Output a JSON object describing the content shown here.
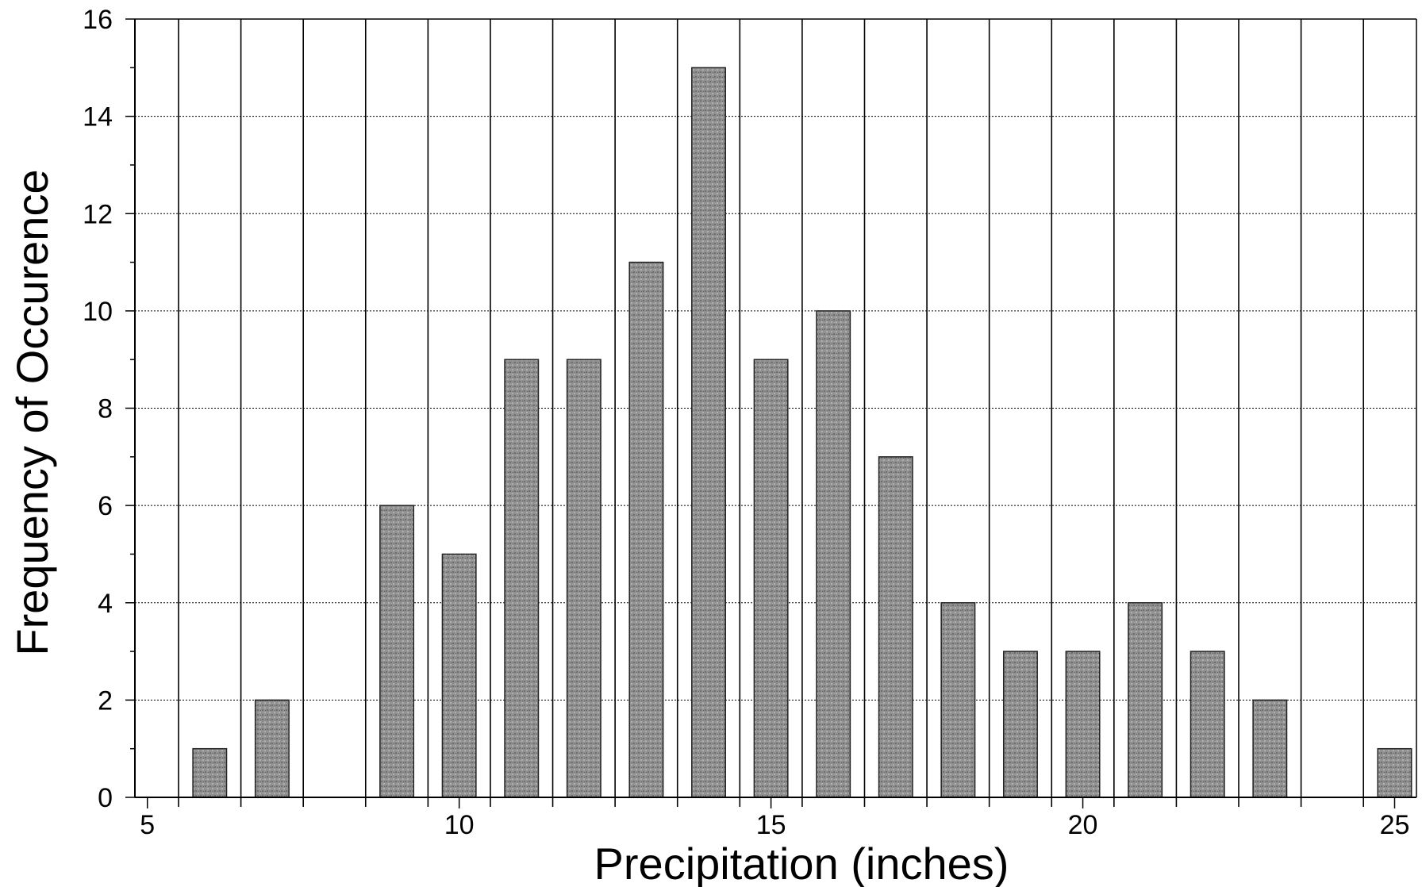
{
  "chart_data": {
    "type": "bar",
    "title": "",
    "xlabel": "Precipitation (inches)",
    "ylabel": "Frequency of Occurence",
    "xlim": [
      5,
      25
    ],
    "ylim": [
      0,
      16
    ],
    "x_ticks": [
      5,
      10,
      15,
      20,
      25
    ],
    "y_ticks": [
      0,
      2,
      4,
      6,
      8,
      10,
      12,
      14,
      16
    ],
    "grid": true,
    "legend": "none",
    "x": [
      6,
      7,
      9,
      10,
      11,
      12,
      13,
      14,
      15,
      16,
      17,
      18,
      19,
      20,
      21,
      22,
      23,
      25
    ],
    "values": [
      1,
      2,
      6,
      5,
      9,
      9,
      11,
      15,
      9,
      10,
      7,
      4,
      3,
      3,
      4,
      3,
      2,
      1
    ],
    "colors": {
      "bar_fill": "#8f8f8f",
      "bar_stroke": "#222222",
      "grid": "#000000",
      "axis": "#000000"
    }
  }
}
